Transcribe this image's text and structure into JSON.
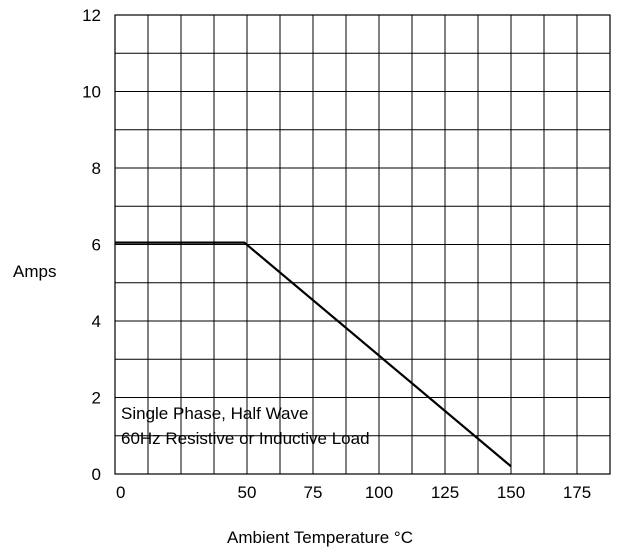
{
  "chart_data": {
    "type": "line",
    "title": "",
    "xlabel": "Ambient Temperature °C",
    "ylabel": "Amps",
    "xlim": [
      0,
      187.5
    ],
    "ylim": [
      0,
      12
    ],
    "x_ticks": [
      "0",
      "50",
      "75",
      "100",
      "125",
      "150",
      "175"
    ],
    "x_tick_values": [
      0,
      50,
      75,
      100,
      125,
      150,
      175
    ],
    "y_ticks": [
      "0",
      "2",
      "4",
      "6",
      "8",
      "10",
      "12"
    ],
    "y_tick_values": [
      0,
      2,
      4,
      6,
      8,
      10,
      12
    ],
    "grid": true,
    "x_grid_step": 12.5,
    "y_grid_step": 1,
    "series": [
      {
        "x": [
          0,
          49,
          150
        ],
        "y": [
          6.05,
          6.05,
          0.2
        ]
      }
    ],
    "annotations": [
      "Single Phase, Half Wave",
      "60Hz Resistive or Inductive Load"
    ],
    "colors": {
      "line": "#000000",
      "grid": "#000000",
      "background": "#ffffff"
    }
  }
}
